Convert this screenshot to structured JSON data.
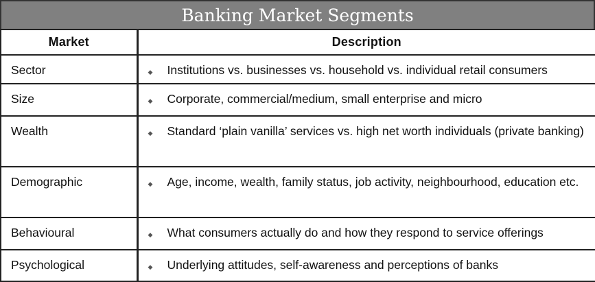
{
  "title": "Banking Market Segments",
  "headers": {
    "market": "Market",
    "description": "Description"
  },
  "bullet_icon": "diamond-bullet",
  "rows": [
    {
      "market": "Sector",
      "description": "Institutions vs. businesses vs. household vs. individual retail consumers"
    },
    {
      "market": "Size",
      "description": "Corporate, commercial/medium, small enterprise and micro"
    },
    {
      "market": "Wealth",
      "description": "Standard ‘plain vanilla’ services vs. high net worth individuals (private banking)"
    },
    {
      "market": "Demographic",
      "description": "Age, income, wealth, family status, job activity, neighbourhood, education etc."
    },
    {
      "market": "Behavioural",
      "description": "What consumers actually do and how they respond to service offerings"
    },
    {
      "market": "Psychological",
      "description": "Underlying attitudes, self-awareness and perceptions of banks"
    }
  ]
}
